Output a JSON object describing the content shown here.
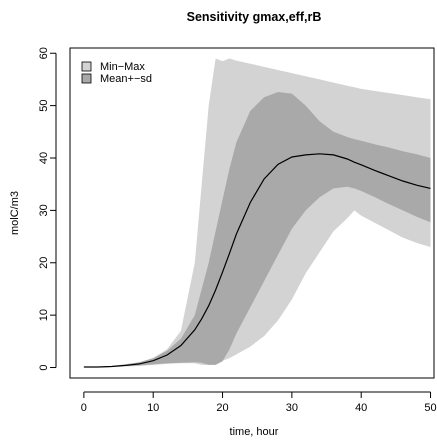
{
  "chart_data": {
    "type": "area",
    "title": "Sensitivity gmax,eff,rB",
    "xlabel": "time, hour",
    "ylabel": "molC/m3",
    "xlim": [
      -2,
      50.5
    ],
    "ylim": [
      -2,
      61
    ],
    "x_ticks": [
      0,
      10,
      20,
      30,
      40,
      50
    ],
    "y_ticks": [
      0,
      10,
      20,
      30,
      40,
      50,
      60
    ],
    "grid": false,
    "legend_position": "top-left",
    "legend": [
      {
        "label": "Min−Max",
        "color": "#d3d3d3"
      },
      {
        "label": "Mean+−sd",
        "color": "#a9a9a9"
      }
    ],
    "x": [
      0,
      2,
      4,
      6,
      8,
      10,
      12,
      14,
      16,
      17,
      18,
      19,
      20,
      21,
      22,
      24,
      26,
      28,
      30,
      32,
      34,
      36,
      38,
      39,
      40,
      42,
      44,
      46,
      48,
      50
    ],
    "series": [
      {
        "name": "Min−Max",
        "kind": "band",
        "color": "#d3d3d3",
        "upper": [
          0.1,
          0.1,
          0.3,
          0.6,
          1.0,
          1.8,
          3.5,
          7.0,
          20.0,
          35.0,
          50.0,
          59.0,
          58.5,
          59.0,
          58.6,
          58.0,
          57.4,
          56.8,
          56.2,
          55.6,
          55.0,
          54.4,
          53.8,
          53.5,
          53.2,
          52.8,
          52.4,
          52.0,
          51.6,
          51.2
        ],
        "lower": [
          0.0,
          0.0,
          0.1,
          0.2,
          0.3,
          0.5,
          0.7,
          0.8,
          0.8,
          0.5,
          0.5,
          0.8,
          1.3,
          1.8,
          2.5,
          4.0,
          6.0,
          9.0,
          13.0,
          18.0,
          22.0,
          26.0,
          28.5,
          30.0,
          29.0,
          27.6,
          26.2,
          24.8,
          23.8,
          23.0
        ]
      },
      {
        "name": "Mean+−sd",
        "kind": "band",
        "color": "#a9a9a9",
        "upper": [
          0.1,
          0.1,
          0.3,
          0.6,
          1.0,
          1.8,
          3.2,
          5.5,
          10.0,
          15.0,
          20.0,
          26.0,
          32.0,
          38.0,
          43.0,
          49.0,
          51.6,
          52.6,
          52.3,
          50.0,
          47.0,
          45.0,
          44.0,
          43.6,
          43.3,
          42.6,
          42.0,
          41.3,
          40.7,
          40.0
        ],
        "lower": [
          0.0,
          0.0,
          0.1,
          0.3,
          0.4,
          0.6,
          0.8,
          0.9,
          1.0,
          0.9,
          0.5,
          0.5,
          1.2,
          3.5,
          6.5,
          11.5,
          16.5,
          21.5,
          26.5,
          30.0,
          32.5,
          34.2,
          34.5,
          34.2,
          33.7,
          32.5,
          31.2,
          30.0,
          28.8,
          27.7
        ]
      },
      {
        "name": "Mean",
        "kind": "line",
        "color": "#000000",
        "values": [
          0.1,
          0.1,
          0.2,
          0.4,
          0.7,
          1.3,
          2.4,
          4.2,
          7.2,
          9.3,
          11.8,
          14.8,
          18.2,
          21.8,
          25.5,
          31.5,
          36.0,
          38.8,
          40.2,
          40.6,
          40.8,
          40.6,
          39.8,
          39.2,
          38.7,
          37.6,
          36.6,
          35.6,
          34.8,
          34.2
        ]
      }
    ]
  }
}
